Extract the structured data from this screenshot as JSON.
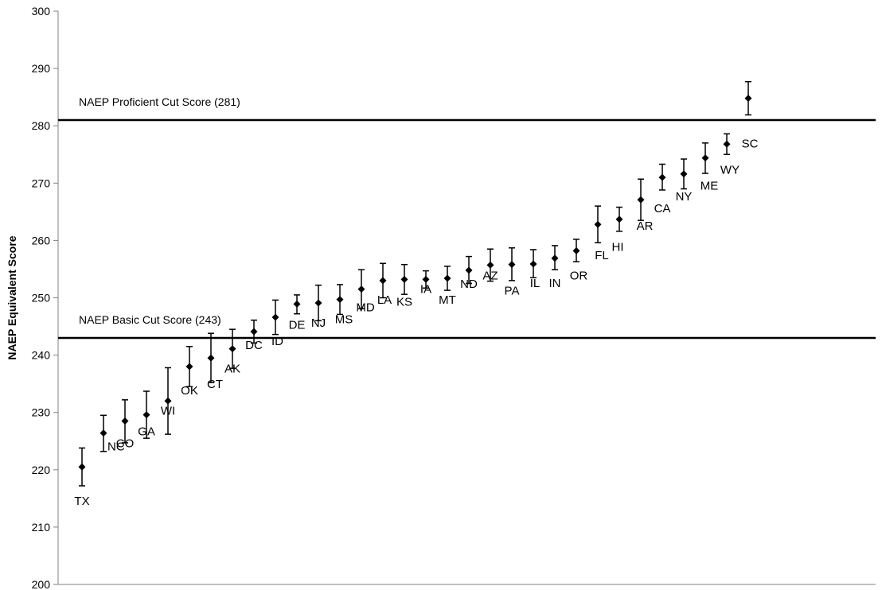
{
  "chart_data": {
    "type": "scatter",
    "ylabel": "NAEP Equivalent Score",
    "ylim": [
      200,
      300
    ],
    "yticks": [
      200,
      210,
      220,
      230,
      240,
      250,
      260,
      270,
      280,
      290,
      300
    ],
    "grid": false,
    "reference_lines": [
      {
        "label": "NAEP Proficient Cut Score (281)",
        "value": 281
      },
      {
        "label": "NAEP Basic Cut Score (243)",
        "value": 243
      }
    ],
    "points": [
      {
        "label": "TX",
        "value": 220.5,
        "low": 217.2,
        "high": 223.8
      },
      {
        "label": "NC",
        "value": 226.4,
        "low": 223.2,
        "high": 229.5
      },
      {
        "label": "CO",
        "value": 228.5,
        "low": 224.7,
        "high": 232.2
      },
      {
        "label": "GA",
        "value": 229.6,
        "low": 225.5,
        "high": 233.7
      },
      {
        "label": "WI",
        "value": 232.0,
        "low": 226.2,
        "high": 237.8
      },
      {
        "label": "OK",
        "value": 238.0,
        "low": 234.5,
        "high": 241.5
      },
      {
        "label": "CT",
        "value": 239.5,
        "low": 235.2,
        "high": 243.8
      },
      {
        "label": "AK",
        "value": 241.1,
        "low": 237.7,
        "high": 244.5
      },
      {
        "label": "DC",
        "value": 244.1,
        "low": 242.1,
        "high": 246.1
      },
      {
        "label": "ID",
        "value": 246.6,
        "low": 243.6,
        "high": 249.6
      },
      {
        "label": "DE",
        "value": 248.9,
        "low": 247.2,
        "high": 250.5
      },
      {
        "label": "NJ",
        "value": 249.1,
        "low": 246.0,
        "high": 252.2
      },
      {
        "label": "MS",
        "value": 249.7,
        "low": 247.1,
        "high": 252.3
      },
      {
        "label": "MD",
        "value": 251.5,
        "low": 248.1,
        "high": 254.9
      },
      {
        "label": "LA",
        "value": 253.0,
        "low": 250.0,
        "high": 256.0
      },
      {
        "label": "KS",
        "value": 253.2,
        "low": 250.6,
        "high": 255.8
      },
      {
        "label": "IA",
        "value": 253.2,
        "low": 251.7,
        "high": 254.7
      },
      {
        "label": "MT",
        "value": 253.4,
        "low": 251.3,
        "high": 255.5
      },
      {
        "label": "ND",
        "value": 254.8,
        "low": 252.5,
        "high": 257.2
      },
      {
        "label": "AZ",
        "value": 255.7,
        "low": 252.9,
        "high": 258.5
      },
      {
        "label": "PA",
        "value": 255.8,
        "low": 253.0,
        "high": 258.7
      },
      {
        "label": "IL",
        "value": 255.9,
        "low": 253.5,
        "high": 258.4
      },
      {
        "label": "IN",
        "value": 256.9,
        "low": 254.9,
        "high": 259.1
      },
      {
        "label": "OR",
        "value": 258.2,
        "low": 256.3,
        "high": 260.2
      },
      {
        "label": "FL",
        "value": 262.8,
        "low": 259.6,
        "high": 266.0
      },
      {
        "label": "HI",
        "value": 263.7,
        "low": 261.6,
        "high": 265.8
      },
      {
        "label": "AR",
        "value": 267.1,
        "low": 263.5,
        "high": 270.7
      },
      {
        "label": "CA",
        "value": 271.0,
        "low": 268.8,
        "high": 273.3
      },
      {
        "label": "NY",
        "value": 271.6,
        "low": 269.0,
        "high": 274.2
      },
      {
        "label": "ME",
        "value": 274.4,
        "low": 271.7,
        "high": 277.0
      },
      {
        "label": "WY",
        "value": 276.8,
        "low": 275.0,
        "high": 278.6
      },
      {
        "label": "SC",
        "value": 284.8,
        "low": 281.9,
        "high": 287.7
      }
    ]
  }
}
